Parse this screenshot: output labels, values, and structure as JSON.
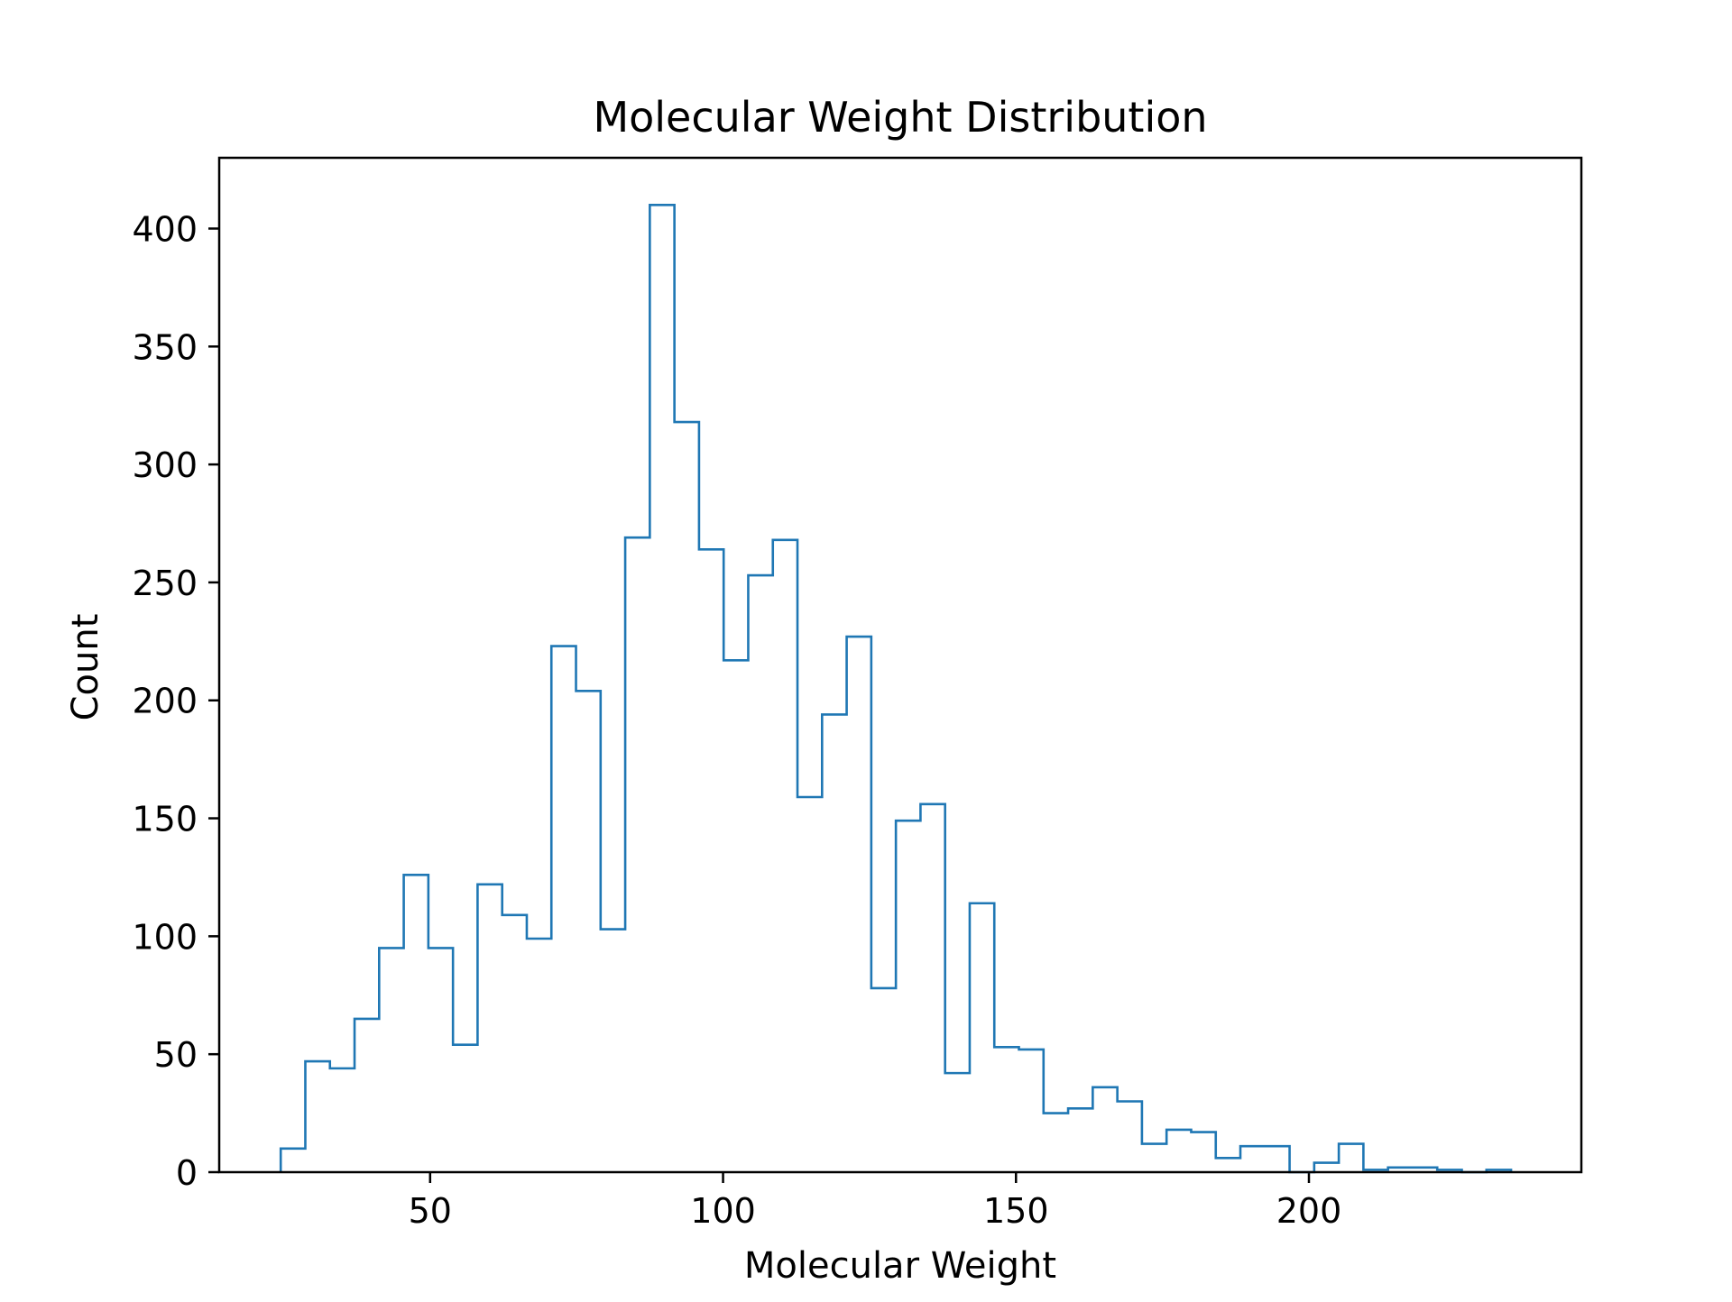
{
  "chart_data": {
    "type": "histogram",
    "title": "Molecular Weight Distribution",
    "xlabel": "Molecular Weight",
    "ylabel": "Count",
    "xlim": [
      14,
      246.5
    ],
    "ylim": [
      0,
      430
    ],
    "xticks": [
      50,
      100,
      150,
      200
    ],
    "yticks": [
      0,
      50,
      100,
      150,
      200,
      250,
      300,
      350,
      400
    ],
    "xtick_labels": [
      "50",
      "100",
      "150",
      "200"
    ],
    "ytick_labels": [
      "0",
      "50",
      "100",
      "150",
      "200",
      "250",
      "300",
      "350",
      "400"
    ],
    "bin_start": 24.5,
    "bin_width": 4.2,
    "counts": [
      10,
      47,
      44,
      65,
      95,
      126,
      95,
      54,
      122,
      109,
      99,
      223,
      204,
      103,
      269,
      410,
      318,
      264,
      217,
      253,
      268,
      159,
      194,
      227,
      78,
      149,
      156,
      42,
      114,
      53,
      52,
      25,
      27,
      36,
      30,
      12,
      18,
      17,
      6,
      11,
      11,
      0,
      4,
      12,
      1,
      2,
      2,
      1,
      0,
      1
    ],
    "color": "#1f77b4",
    "histtype": "step",
    "grid": false
  }
}
